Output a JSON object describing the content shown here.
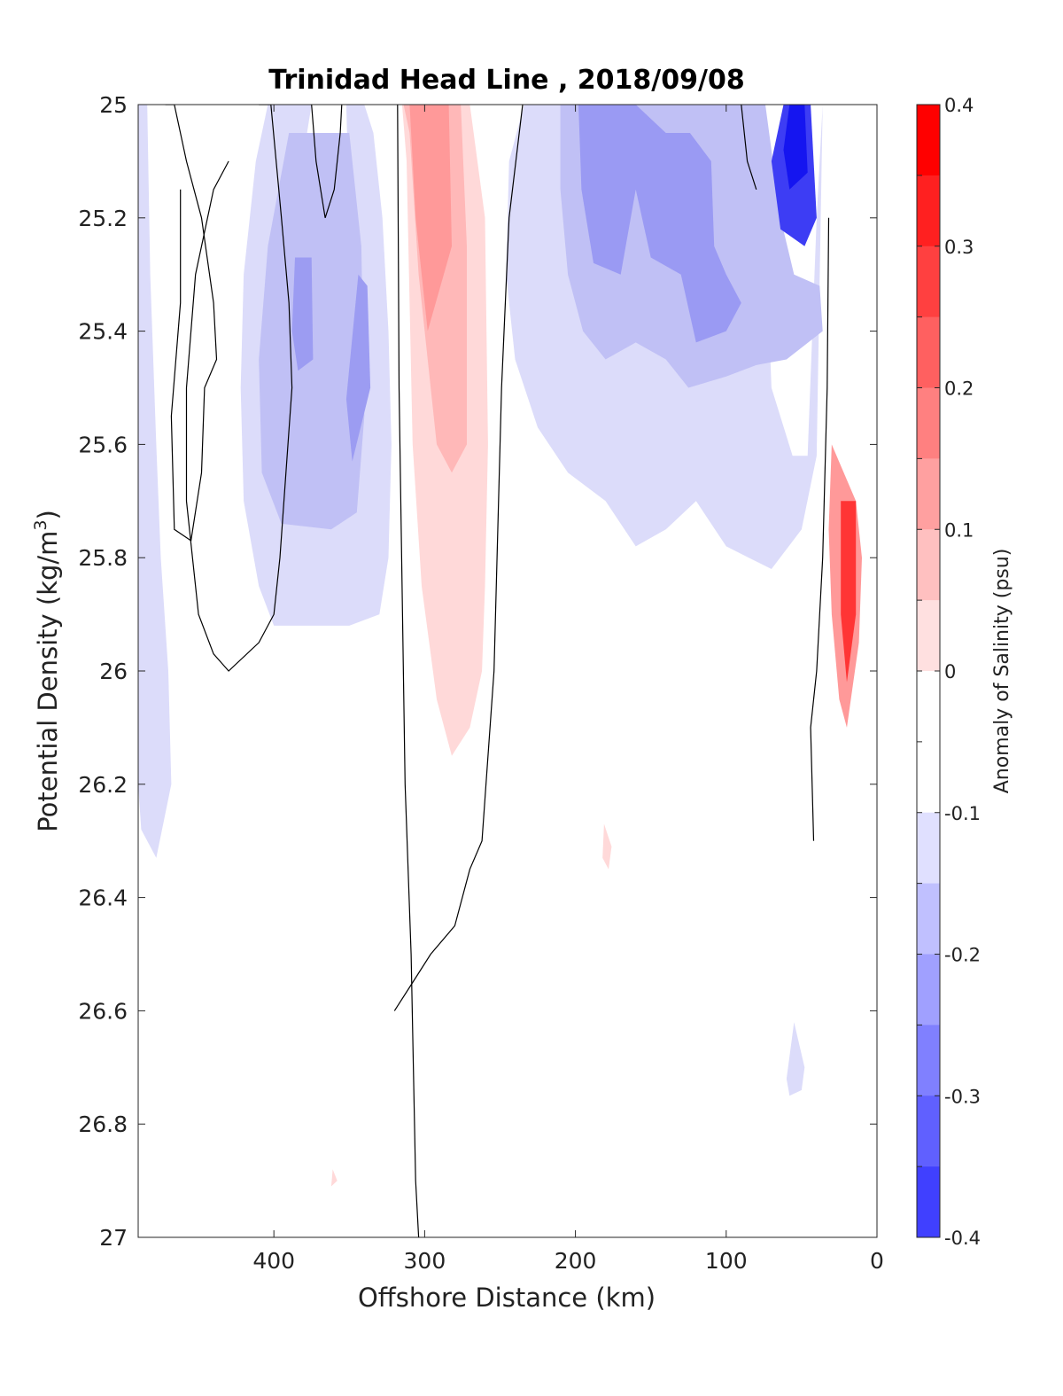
{
  "chart_data": {
    "type": "contour",
    "title": "Trinidad Head Line , 2018/09/08",
    "xlabel": "Offshore Distance (km)",
    "ylabel_main": "Potential Density (kg/m",
    "ylabel_sup": "3",
    "ylabel_end": ")",
    "xlim": [
      490,
      0
    ],
    "ylim": [
      27,
      25
    ],
    "x_reversed": true,
    "y_reversed": true,
    "xticks": [
      400,
      300,
      200,
      100,
      0
    ],
    "xtick_labels": [
      "400",
      "300",
      "200",
      "100",
      "0"
    ],
    "yticks": [
      25,
      25.2,
      25.4,
      25.6,
      25.8,
      26,
      26.2,
      26.4,
      26.6,
      26.8,
      27
    ],
    "ytick_labels": [
      "25",
      "25.2",
      "25.4",
      "25.6",
      "25.8",
      "26",
      "26.2",
      "26.4",
      "26.6",
      "26.8",
      "27"
    ],
    "colorbar": {
      "label": "Anomaly of Salinity (psu)",
      "ticks": [
        0.4,
        0.3,
        0.2,
        0.1,
        0,
        -0.1,
        -0.2,
        -0.3,
        -0.4
      ],
      "tick_labels": [
        "0.4",
        "0.3",
        "0.2",
        "0.1",
        "0",
        "-0.1",
        "-0.2",
        "-0.3",
        "-0.4"
      ],
      "levels": [
        -0.4,
        -0.35,
        -0.3,
        -0.25,
        -0.2,
        -0.15,
        -0.1,
        -0.05,
        0.05,
        0.1,
        0.15,
        0.2,
        0.25,
        0.3,
        0.35,
        0.4
      ],
      "colors_top_to_bottom": [
        "#ff0000",
        "#ff2020",
        "#ff4040",
        "#ff6060",
        "#ff8080",
        "#ffa0a0",
        "#ffc0c0",
        "#ffe0e0",
        "#ffffff",
        "#ffffff",
        "#e0e0ff",
        "#c0c0ff",
        "#a0a0ff",
        "#8080ff",
        "#6060ff",
        "#4040ff",
        "#2020ff",
        "#0000ff"
      ]
    },
    "filled_regions": [
      {
        "level": -0.1,
        "color": "#dcdcfa",
        "points": [
          [
            490,
            25
          ],
          [
            484,
            25
          ],
          [
            482,
            25.3
          ],
          [
            478,
            25.6
          ],
          [
            475,
            25.8
          ],
          [
            470,
            26
          ],
          [
            468,
            26.2
          ],
          [
            478,
            26.33
          ],
          [
            488,
            26.28
          ],
          [
            490,
            26.2
          ]
        ]
      },
      {
        "level": -0.1,
        "color": "#dcdcfa",
        "points": [
          [
            404,
            25
          ],
          [
            340,
            25
          ],
          [
            334,
            25.05
          ],
          [
            328,
            25.2
          ],
          [
            324,
            25.4
          ],
          [
            322,
            25.6
          ],
          [
            324,
            25.8
          ],
          [
            330,
            25.9
          ],
          [
            350,
            25.92
          ],
          [
            400,
            25.92
          ],
          [
            410,
            25.85
          ],
          [
            420,
            25.7
          ],
          [
            422,
            25.5
          ],
          [
            420,
            25.3
          ],
          [
            412,
            25.1
          ]
        ]
      },
      {
        "level": -0.05,
        "color": "#ffffff",
        "points": [
          [
            375,
            25
          ],
          [
            352,
            25
          ],
          [
            350,
            25.2
          ],
          [
            356,
            25.35
          ],
          [
            368,
            25.33
          ],
          [
            376,
            25.22
          ],
          [
            378,
            25.05
          ]
        ]
      },
      {
        "level": -0.15,
        "color": "#c0c0f5",
        "points": [
          [
            390,
            25.05
          ],
          [
            350,
            25.05
          ],
          [
            342,
            25.25
          ],
          [
            340,
            25.55
          ],
          [
            345,
            25.72
          ],
          [
            362,
            25.75
          ],
          [
            395,
            25.74
          ],
          [
            408,
            25.65
          ],
          [
            410,
            25.45
          ],
          [
            404,
            25.25
          ]
        ]
      },
      {
        "level": -0.2,
        "color": "#9c9cf2",
        "points": [
          [
            386,
            25.27
          ],
          [
            375,
            25.27
          ],
          [
            374,
            25.45
          ],
          [
            384,
            25.47
          ],
          [
            388,
            25.4
          ]
        ]
      },
      {
        "level": -0.2,
        "color": "#9c9cf2",
        "points": [
          [
            344,
            25.3
          ],
          [
            338,
            25.32
          ],
          [
            336,
            25.5
          ],
          [
            348,
            25.63
          ],
          [
            352,
            25.52
          ]
        ]
      },
      {
        "level": 0.1,
        "color": "#ffd9d9",
        "points": [
          [
            315,
            25
          ],
          [
            270,
            25
          ],
          [
            260,
            25.2
          ],
          [
            258,
            25.6
          ],
          [
            260,
            25.85
          ],
          [
            262,
            26
          ],
          [
            270,
            26.1
          ],
          [
            282,
            26.15
          ],
          [
            292,
            26.05
          ],
          [
            302,
            25.85
          ],
          [
            308,
            25.6
          ],
          [
            310,
            25.35
          ],
          [
            312,
            25.1
          ]
        ]
      },
      {
        "level": 0.15,
        "color": "#ffb8b8",
        "points": [
          [
            314,
            25
          ],
          [
            276,
            25
          ],
          [
            272,
            25.25
          ],
          [
            272,
            25.6
          ],
          [
            282,
            25.65
          ],
          [
            292,
            25.6
          ],
          [
            304,
            25.3
          ],
          [
            310,
            25.05
          ]
        ]
      },
      {
        "level": 0.2,
        "color": "#ff9999",
        "points": [
          [
            310,
            25
          ],
          [
            284,
            25
          ],
          [
            282,
            25.25
          ],
          [
            298,
            25.4
          ],
          [
            306,
            25.2
          ]
        ]
      },
      {
        "level": -0.1,
        "color": "#dcdcfa",
        "points": [
          [
            234,
            25
          ],
          [
            80,
            25
          ],
          [
            75,
            25.15
          ],
          [
            70,
            25.5
          ],
          [
            56,
            25.62
          ],
          [
            46,
            25.62
          ],
          [
            40,
            25.2
          ],
          [
            36,
            25
          ],
          [
            40,
            25.62
          ],
          [
            50,
            25.75
          ],
          [
            70,
            25.82
          ],
          [
            85,
            25.8
          ],
          [
            100,
            25.78
          ],
          [
            120,
            25.7
          ],
          [
            140,
            25.75
          ],
          [
            160,
            25.78
          ],
          [
            180,
            25.7
          ],
          [
            205,
            25.65
          ],
          [
            225,
            25.57
          ],
          [
            240,
            25.45
          ],
          [
            246,
            25.3
          ],
          [
            244,
            25.1
          ]
        ]
      },
      {
        "level": -0.15,
        "color": "#c0c0f5",
        "points": [
          [
            210,
            25
          ],
          [
            74,
            25
          ],
          [
            64,
            25.2
          ],
          [
            55,
            25.3
          ],
          [
            38,
            25.32
          ],
          [
            36,
            25.4
          ],
          [
            60,
            25.45
          ],
          [
            80,
            25.46
          ],
          [
            100,
            25.48
          ],
          [
            125,
            25.5
          ],
          [
            140,
            25.45
          ],
          [
            160,
            25.42
          ],
          [
            180,
            25.45
          ],
          [
            195,
            25.4
          ],
          [
            205,
            25.3
          ],
          [
            210,
            25.15
          ]
        ]
      },
      {
        "level": -0.2,
        "color": "#9a9af3",
        "points": [
          [
            198,
            25
          ],
          [
            160,
            25
          ],
          [
            140,
            25.05
          ],
          [
            124,
            25.05
          ],
          [
            110,
            25.1
          ],
          [
            108,
            25.25
          ],
          [
            100,
            25.3
          ],
          [
            90,
            25.35
          ],
          [
            100,
            25.4
          ],
          [
            120,
            25.42
          ],
          [
            130,
            25.3
          ],
          [
            150,
            25.27
          ],
          [
            160,
            25.15
          ],
          [
            170,
            25.3
          ],
          [
            188,
            25.28
          ],
          [
            196,
            25.15
          ]
        ]
      },
      {
        "level": -0.3,
        "color": "#3d3df4",
        "points": [
          [
            62,
            25
          ],
          [
            44,
            25
          ],
          [
            40,
            25.2
          ],
          [
            48,
            25.25
          ],
          [
            64,
            25.22
          ],
          [
            70,
            25.1
          ]
        ]
      },
      {
        "level": -0.35,
        "color": "#1515f0",
        "points": [
          [
            58,
            25
          ],
          [
            48,
            25
          ],
          [
            46,
            25.12
          ],
          [
            58,
            25.15
          ],
          [
            62,
            25.08
          ]
        ]
      },
      {
        "level": 0.2,
        "color": "#ff9999",
        "points": [
          [
            30,
            25.6
          ],
          [
            14,
            25.7
          ],
          [
            10,
            25.8
          ],
          [
            12,
            25.95
          ],
          [
            20,
            26.1
          ],
          [
            25,
            26.05
          ],
          [
            30,
            25.9
          ],
          [
            32,
            25.75
          ]
        ]
      },
      {
        "level": 0.3,
        "color": "#ff3535",
        "points": [
          [
            24,
            25.7
          ],
          [
            14,
            25.7
          ],
          [
            14,
            25.9
          ],
          [
            20,
            26.02
          ],
          [
            24,
            25.9
          ]
        ]
      },
      {
        "level": -0.1,
        "color": "#dcdcfa",
        "points": [
          [
            60,
            26.72
          ],
          [
            55,
            26.62
          ],
          [
            48,
            26.7
          ],
          [
            50,
            26.74
          ],
          [
            58,
            26.75
          ]
        ]
      },
      {
        "level": 0.1,
        "color": "#ffd9d9",
        "points": [
          [
            181,
            26.27
          ],
          [
            176,
            26.31
          ],
          [
            178,
            26.35
          ],
          [
            182,
            26.33
          ]
        ]
      },
      {
        "level": 0.1,
        "color": "#ffd9d9",
        "points": [
          [
            361,
            26.88
          ],
          [
            358,
            26.9
          ],
          [
            362,
            26.91
          ]
        ]
      }
    ],
    "contour_lines": [
      {
        "level": 0,
        "points": [
          [
            472,
            25
          ],
          [
            466,
            25
          ],
          [
            458,
            25.1
          ],
          [
            448,
            25.2
          ],
          [
            440,
            25.35
          ],
          [
            438,
            25.45
          ],
          [
            446,
            25.5
          ],
          [
            448,
            25.65
          ],
          [
            455,
            25.77
          ],
          [
            466,
            25.75
          ],
          [
            468,
            25.55
          ],
          [
            462,
            25.35
          ],
          [
            462,
            25.15
          ]
        ]
      },
      {
        "level": 0,
        "points": [
          [
            410,
            25
          ],
          [
            402,
            25
          ],
          [
            395,
            25.2
          ],
          [
            390,
            25.35
          ],
          [
            388,
            25.5
          ],
          [
            392,
            25.65
          ],
          [
            396,
            25.8
          ],
          [
            400,
            25.9
          ],
          [
            410,
            25.95
          ],
          [
            430,
            26
          ],
          [
            440,
            25.97
          ],
          [
            450,
            25.9
          ],
          [
            458,
            25.7
          ],
          [
            458,
            25.5
          ],
          [
            452,
            25.3
          ],
          [
            440,
            25.15
          ],
          [
            430,
            25.1
          ]
        ]
      },
      {
        "level": 0,
        "points": [
          [
            375,
            25
          ],
          [
            372,
            25.1
          ],
          [
            366,
            25.2
          ],
          [
            360,
            25.15
          ],
          [
            356,
            25.05
          ],
          [
            355,
            25
          ]
        ]
      },
      {
        "level": 0,
        "points": [
          [
            318,
            25
          ],
          [
            317,
            25.5
          ],
          [
            313,
            26.2
          ],
          [
            309,
            26.5
          ],
          [
            306,
            26.9
          ],
          [
            304,
            27
          ]
        ]
      },
      {
        "level": 0,
        "points": [
          [
            235,
            25
          ],
          [
            244,
            25.2
          ],
          [
            249,
            25.5
          ],
          [
            252,
            25.8
          ],
          [
            254,
            26
          ],
          [
            262,
            26.3
          ],
          [
            270,
            26.35
          ],
          [
            280,
            26.45
          ],
          [
            296,
            26.5
          ],
          [
            308,
            26.55
          ],
          [
            320,
            26.6
          ]
        ]
      },
      {
        "level": 0,
        "points": [
          [
            90,
            25
          ],
          [
            86,
            25.1
          ],
          [
            80,
            25.15
          ]
        ]
      },
      {
        "level": 0,
        "points": [
          [
            32,
            25.2
          ],
          [
            33,
            25.5
          ],
          [
            36,
            25.8
          ],
          [
            40,
            26
          ],
          [
            44,
            26.1
          ],
          [
            42,
            26.3
          ]
        ]
      }
    ]
  }
}
